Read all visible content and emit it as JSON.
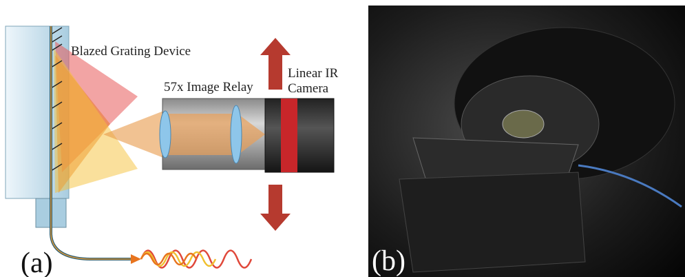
{
  "panel_a": {
    "grating_label": "Blazed Grating Device",
    "relay_label": "57x Image Relay",
    "camera_label": [
      "Linear IR",
      "Camera"
    ],
    "panel_label": "(a)"
  },
  "panel_b": {
    "panel_label": "(b)"
  }
}
